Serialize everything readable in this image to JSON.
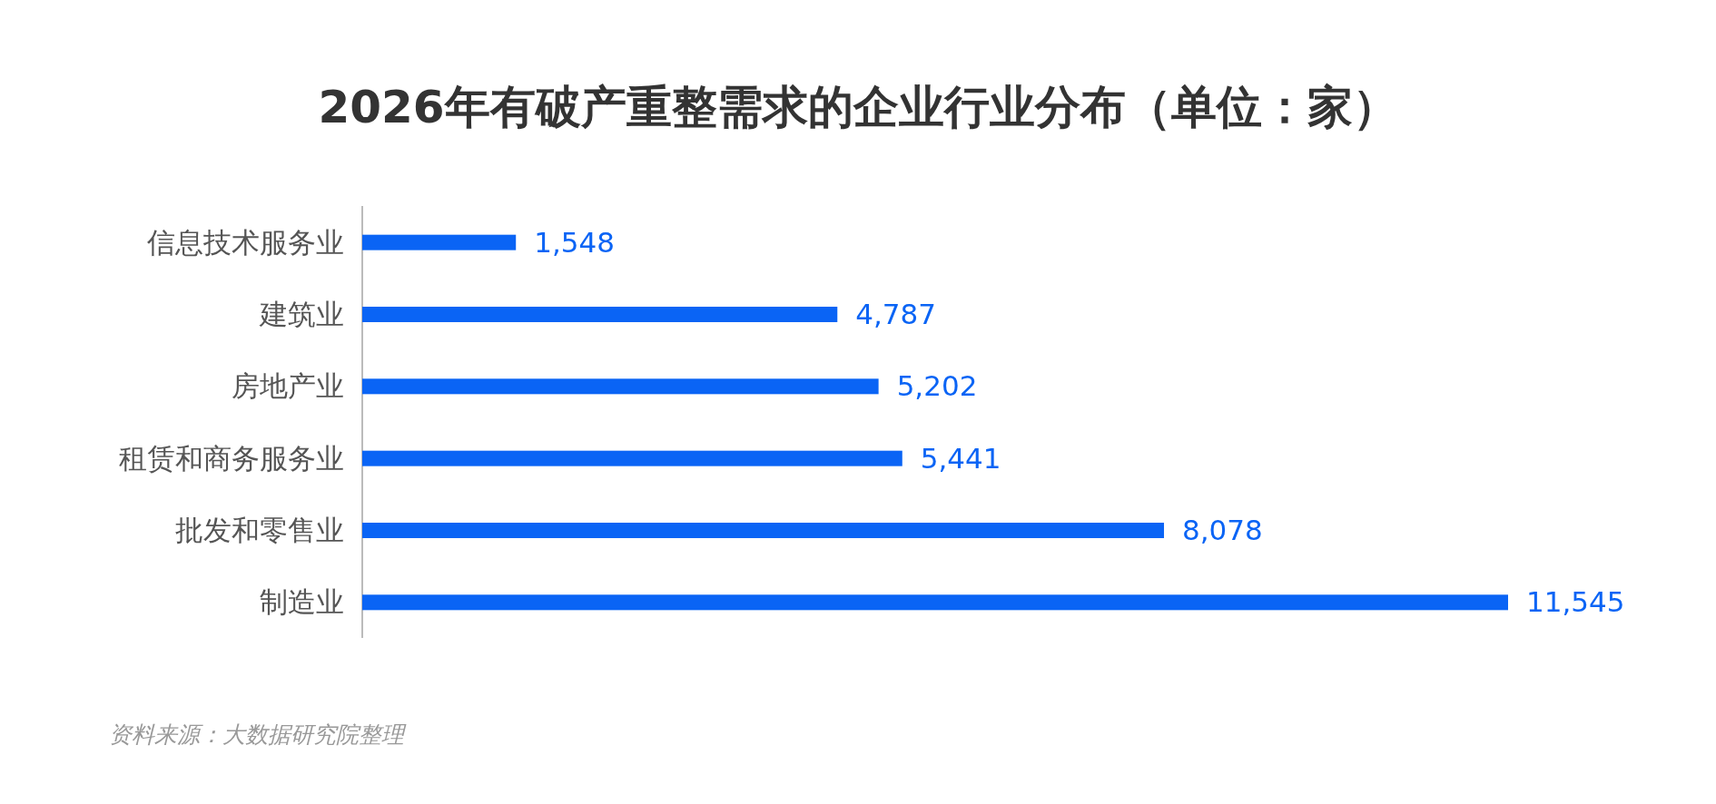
{
  "chart_data": {
    "type": "bar",
    "orientation": "horizontal",
    "title": "2026年有破产重整需求的企业行业分布（单位：家）",
    "categories": [
      "信息技术服务业",
      "建筑业",
      "房地产业",
      "租赁和商务服务业",
      "批发和零售业",
      "制造业"
    ],
    "values": [
      1548,
      4787,
      5202,
      5441,
      8078,
      11545
    ],
    "color": "#0a64f5",
    "value_labels": [
      "1,548",
      "4,787",
      "5,202",
      "5,441",
      "8,078",
      "11,545"
    ],
    "annotations": [
      "资料来源：大数据研究院整理"
    ]
  }
}
